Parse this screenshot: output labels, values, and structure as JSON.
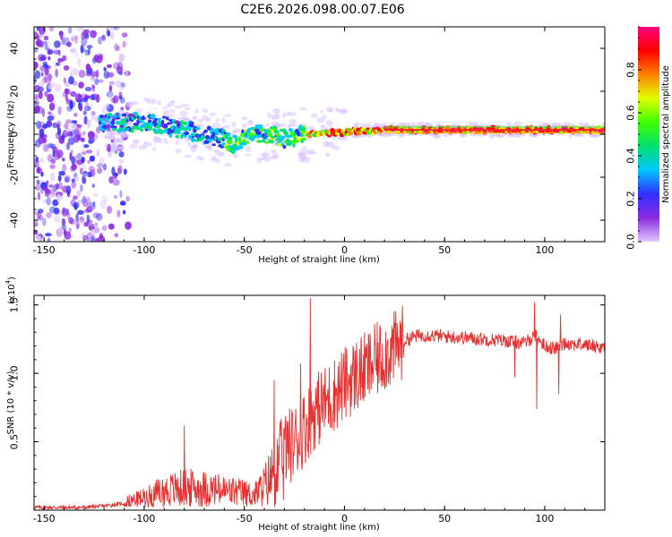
{
  "title": "C2E6.2026.098.00.07.E06",
  "chart_data": [
    {
      "type": "heatmap",
      "name": "spectrogram",
      "xlabel": "Height of straight line (km)",
      "ylabel": "Frequency (Hz)",
      "xlim": [
        -155,
        130
      ],
      "ylim": [
        -50,
        50
      ],
      "xticks": [
        "-150",
        "-100",
        "-50",
        "0",
        "50",
        "100"
      ],
      "xtick_values": [
        -150,
        -100,
        -50,
        0,
        50,
        100
      ],
      "yticks": [
        "-40",
        "-20",
        "0",
        "20",
        "40"
      ],
      "ytick_values": [
        -40,
        -20,
        0,
        20,
        40
      ],
      "colorbar": {
        "label": "Normalized spectral amplitude",
        "ticks": [
          "0.0",
          "0.2",
          "0.4",
          "0.6",
          "0.8"
        ],
        "tick_values": [
          0.0,
          0.2,
          0.4,
          0.6,
          0.8
        ],
        "range": [
          0,
          1
        ],
        "colormap": [
          "#e0c8ff",
          "#8a2be2",
          "#3030ff",
          "#00c8ff",
          "#00e070",
          "#40ff00",
          "#e0ff00",
          "#ff8000",
          "#ff0000",
          "#ff0080"
        ]
      },
      "ridge": [
        {
          "x": -120,
          "y": 5
        },
        {
          "x": -100,
          "y": 6
        },
        {
          "x": -90,
          "y": 4
        },
        {
          "x": -80,
          "y": 2
        },
        {
          "x": -70,
          "y": 0
        },
        {
          "x": -60,
          "y": -2
        },
        {
          "x": -55,
          "y": -5
        },
        {
          "x": -50,
          "y": -1
        },
        {
          "x": -40,
          "y": 0
        },
        {
          "x": -30,
          "y": -2
        },
        {
          "x": -20,
          "y": 0
        },
        {
          "x": 0,
          "y": 1
        },
        {
          "x": 20,
          "y": 2
        },
        {
          "x": 50,
          "y": 2
        },
        {
          "x": 90,
          "y": 2
        },
        {
          "x": 130,
          "y": 2
        }
      ]
    },
    {
      "type": "line",
      "name": "snr",
      "xlabel": "Height of straight line (km)",
      "ylabel": "SNR (10 * v/v)",
      "multiplier": "(x10",
      "multiplier_exp": "4",
      "xlim": [
        -155,
        130
      ],
      "ylim": [
        0,
        1.57
      ],
      "xticks": [
        "-150",
        "-100",
        "-50",
        "0",
        "50",
        "100"
      ],
      "xtick_values": [
        -150,
        -100,
        -50,
        0,
        50,
        100
      ],
      "yticks": [
        "0.5",
        "1.0",
        "1.5"
      ],
      "ytick_values": [
        0.5,
        1.0,
        1.5
      ],
      "color": "#e83030",
      "series": [
        {
          "name": "SNR",
          "x": [
            -155,
            -130,
            -120,
            -110,
            -100,
            -90,
            -80,
            -70,
            -60,
            -50,
            -45,
            -40,
            -35,
            -30,
            -25,
            -20,
            -15,
            -10,
            -5,
            0,
            5,
            10,
            15,
            20,
            25,
            30,
            35,
            40,
            50,
            60,
            70,
            80,
            90,
            95,
            100,
            105,
            110,
            120,
            130
          ],
          "y": [
            0.02,
            0.02,
            0.03,
            0.05,
            0.09,
            0.15,
            0.18,
            0.17,
            0.15,
            0.13,
            0.11,
            0.2,
            0.32,
            0.45,
            0.5,
            0.6,
            0.72,
            0.78,
            0.85,
            0.92,
            0.98,
            1.02,
            1.08,
            1.14,
            1.18,
            1.24,
            1.27,
            1.28,
            1.27,
            1.26,
            1.25,
            1.24,
            1.22,
            1.28,
            1.2,
            1.18,
            1.22,
            1.21,
            1.19
          ]
        }
      ],
      "spikes": [
        {
          "x": -17,
          "y": 1.55
        },
        {
          "x": -35,
          "y": 0.95
        },
        {
          "x": -22,
          "y": 1.07
        },
        {
          "x": -80,
          "y": 0.62
        },
        {
          "x": 95,
          "y": 1.52
        },
        {
          "x": 96,
          "y": 0.74
        },
        {
          "x": 107,
          "y": 0.85
        },
        {
          "x": 108,
          "y": 1.43
        },
        {
          "x": 85,
          "y": 0.97
        }
      ]
    }
  ]
}
